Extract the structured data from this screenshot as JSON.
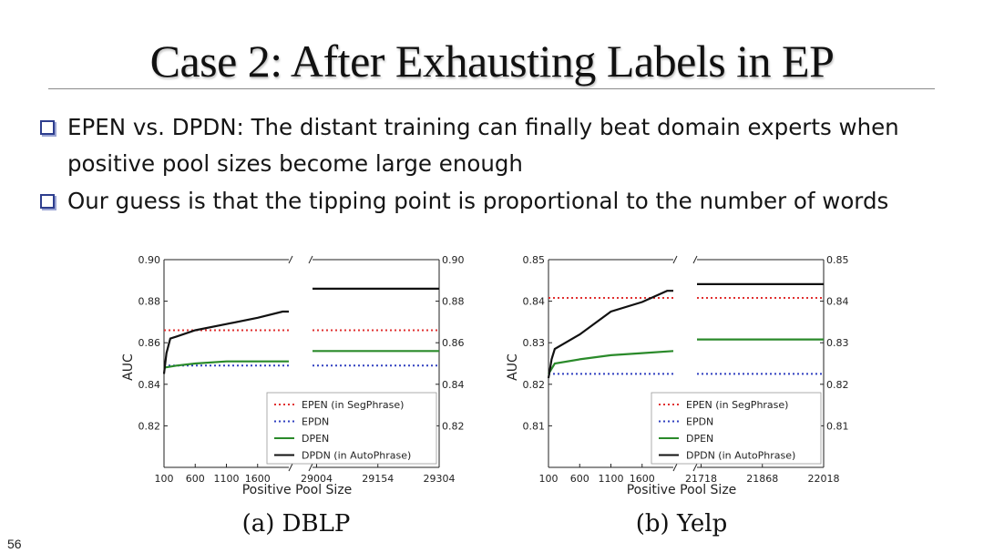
{
  "slide": {
    "title": "Case 2: After Exhausting Labels in EP",
    "bullets": [
      "EPEN vs. DPDN: The distant training can finally beat domain experts when positive pool sizes become large enough",
      "Our guess is that the tipping point is proportional to the number of words"
    ],
    "slide_number": "56",
    "captions": [
      "(a) DBLP",
      "(b) Yelp"
    ]
  },
  "chart_data": [
    {
      "type": "line",
      "title": "",
      "caption": "(a) DBLP",
      "xlabel": "Positive Pool Size",
      "ylabel": "AUC",
      "ylim": [
        0.8,
        0.9
      ],
      "y_ticks": [
        "0.82",
        "0.84",
        "0.86",
        "0.88",
        "0.90"
      ],
      "y_tick_values": [
        0.82,
        0.84,
        0.86,
        0.88,
        0.9
      ],
      "broken_x_axis": true,
      "x_segments": [
        {
          "xlim": [
            100,
            2100
          ],
          "tick_values": [
            100,
            600,
            1100,
            1600
          ],
          "tick_labels": [
            "100",
            "600",
            "1100",
            "1600"
          ]
        },
        {
          "xlim": [
            28994,
            29304
          ],
          "tick_values": [
            29004,
            29154,
            29304
          ],
          "tick_labels": [
            "29004",
            "29154",
            "29304"
          ]
        }
      ],
      "series": [
        {
          "name": "EPEN (in SegPhrase)",
          "color": "#e03030",
          "style": "dotted",
          "segments": [
            [
              [
                100,
                0.866
              ],
              [
                2100,
                0.866
              ]
            ],
            [
              [
                28994,
                0.866
              ],
              [
                29304,
                0.866
              ]
            ]
          ]
        },
        {
          "name": "EPDN",
          "color": "#3040c0",
          "style": "dotted",
          "segments": [
            [
              [
                100,
                0.849
              ],
              [
                2100,
                0.849
              ]
            ],
            [
              [
                28994,
                0.849
              ],
              [
                29304,
                0.849
              ]
            ]
          ]
        },
        {
          "name": "DPEN",
          "color": "#2a8a2a",
          "style": "solid",
          "segments": [
            [
              [
                100,
                0.848
              ],
              [
                300,
                0.849
              ],
              [
                600,
                0.85
              ],
              [
                1100,
                0.851
              ],
              [
                1600,
                0.851
              ],
              [
                2100,
                0.851
              ]
            ],
            [
              [
                28994,
                0.856
              ],
              [
                29304,
                0.856
              ]
            ]
          ]
        },
        {
          "name": "DPDN (in AutoPhrase)",
          "color": "#111111",
          "style": "solid",
          "segments": [
            [
              [
                100,
                0.845
              ],
              [
                140,
                0.855
              ],
              [
                200,
                0.862
              ],
              [
                300,
                0.863
              ],
              [
                600,
                0.866
              ],
              [
                1100,
                0.869
              ],
              [
                1600,
                0.872
              ],
              [
                2000,
                0.875
              ],
              [
                2100,
                0.875
              ]
            ],
            [
              [
                28994,
                0.886
              ],
              [
                29304,
                0.886
              ]
            ]
          ]
        }
      ],
      "legend": {
        "position": "lower-right",
        "entries": [
          "EPEN (in SegPhrase)",
          "EPDN",
          "DPEN",
          "DPDN (in AutoPhrase)"
        ]
      }
    },
    {
      "type": "line",
      "title": "",
      "caption": "(b) Yelp",
      "xlabel": "Positive Pool Size",
      "ylabel": "AUC",
      "ylim": [
        0.8,
        0.85
      ],
      "y_ticks": [
        "0.81",
        "0.82",
        "0.83",
        "0.84",
        "0.85"
      ],
      "y_tick_values": [
        0.81,
        0.82,
        0.83,
        0.84,
        0.85
      ],
      "broken_x_axis": true,
      "x_segments": [
        {
          "xlim": [
            100,
            2100
          ],
          "tick_values": [
            100,
            600,
            1100,
            1600
          ],
          "tick_labels": [
            "100",
            "600",
            "1100",
            "1600"
          ]
        },
        {
          "xlim": [
            21708,
            22018
          ],
          "tick_values": [
            21718,
            21868,
            22018
          ],
          "tick_labels": [
            "21718",
            "21868",
            "22018"
          ]
        }
      ],
      "series": [
        {
          "name": "EPEN (in SegPhrase)",
          "color": "#e03030",
          "style": "dotted",
          "segments": [
            [
              [
                100,
                0.8408
              ],
              [
                2100,
                0.8408
              ]
            ],
            [
              [
                21708,
                0.8408
              ],
              [
                22018,
                0.8408
              ]
            ]
          ]
        },
        {
          "name": "EPDN",
          "color": "#3040c0",
          "style": "dotted",
          "segments": [
            [
              [
                100,
                0.8225
              ],
              [
                2100,
                0.8225
              ]
            ],
            [
              [
                21708,
                0.8225
              ],
              [
                22018,
                0.8225
              ]
            ]
          ]
        },
        {
          "name": "DPEN",
          "color": "#2a8a2a",
          "style": "solid",
          "segments": [
            [
              [
                100,
                0.8225
              ],
              [
                200,
                0.825
              ],
              [
                600,
                0.826
              ],
              [
                1100,
                0.827
              ],
              [
                1600,
                0.8275
              ],
              [
                2100,
                0.828
              ]
            ],
            [
              [
                21708,
                0.8308
              ],
              [
                22018,
                0.8308
              ]
            ]
          ]
        },
        {
          "name": "DPDN (in AutoPhrase)",
          "color": "#111111",
          "style": "solid",
          "segments": [
            [
              [
                100,
                0.8215
              ],
              [
                150,
                0.826
              ],
              [
                200,
                0.8285
              ],
              [
                600,
                0.832
              ],
              [
                1100,
                0.8375
              ],
              [
                1600,
                0.8398
              ],
              [
                2000,
                0.8425
              ],
              [
                2100,
                0.8425
              ]
            ],
            [
              [
                21708,
                0.8441
              ],
              [
                22018,
                0.8441
              ]
            ]
          ]
        }
      ],
      "legend": {
        "position": "lower-right",
        "entries": [
          "EPEN (in SegPhrase)",
          "EPDN",
          "DPEN",
          "DPDN (in AutoPhrase)"
        ]
      }
    }
  ]
}
